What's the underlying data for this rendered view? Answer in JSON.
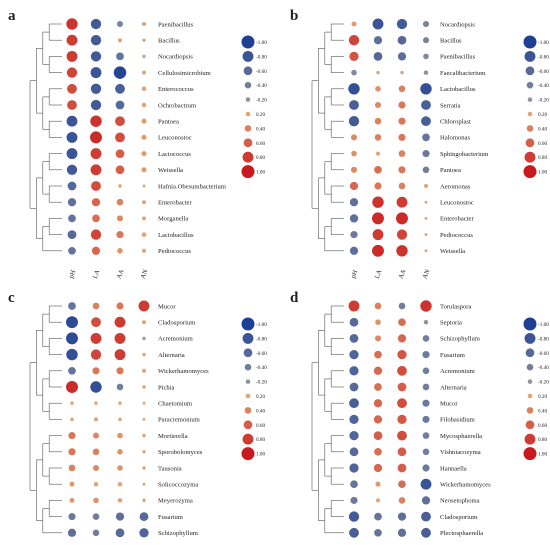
{
  "chart_data": [
    {
      "type": "bubble-heatmap",
      "panel_label": "a",
      "columns": [
        "pH",
        "LA",
        "AA",
        "AN"
      ],
      "rows": [
        "Paenibacillus",
        "Bacillus",
        "Nocardiopsis",
        "Cellulosimicrobium",
        "Enterococcus",
        "Ochrobactrum",
        "Pantoea",
        "Leuconostoc",
        "Lactococcus",
        "Weissella",
        "Hafnia.Obesumbacterium",
        "Enterobacter",
        "Morganella",
        "Lactobacillus",
        "Pediococcus"
      ],
      "values": [
        [
          0.85,
          -0.75,
          -0.35,
          0.15
        ],
        [
          0.8,
          -0.75,
          0.15,
          0.1
        ],
        [
          0.8,
          -0.75,
          -0.5,
          0.1
        ],
        [
          0.75,
          -0.8,
          -0.95,
          0.15
        ],
        [
          0.7,
          -0.75,
          -0.7,
          0.2
        ],
        [
          0.7,
          -0.75,
          -0.6,
          0.2
        ],
        [
          -0.8,
          0.85,
          0.7,
          0.25
        ],
        [
          -0.8,
          0.9,
          0.7,
          0.25
        ],
        [
          -0.8,
          0.8,
          0.6,
          0.25
        ],
        [
          -0.75,
          0.8,
          0.6,
          0.25
        ],
        [
          -0.6,
          0.7,
          0.1,
          0.05
        ],
        [
          -0.55,
          0.55,
          0.4,
          0.15
        ],
        [
          -0.5,
          0.5,
          0.35,
          0.15
        ],
        [
          -0.6,
          0.75,
          0.45,
          0.2
        ],
        [
          -0.5,
          0.55,
          0.3,
          0.15
        ]
      ],
      "legend_ticks": [
        "-1.00",
        "-0.80",
        "-0.60",
        "-0.40",
        "-0.20",
        "0.20",
        "0.40",
        "0.60",
        "0.80",
        "1.00"
      ]
    },
    {
      "type": "bubble-heatmap",
      "panel_label": "b",
      "columns": [
        "pH",
        "LA",
        "AA",
        "AN"
      ],
      "rows": [
        "Nocardiopsis",
        "Bacillus",
        "Paenibacillus",
        "Faecalibacterium",
        "Lactobacillus",
        "Serratia",
        "Chloroplast",
        "Halomonas",
        "Sphingobacterium",
        "Pantoea",
        "Aeromonas",
        "Leuconostoc",
        "Enterobacter",
        "Pediococcus",
        "Weissella"
      ],
      "values": [
        [
          0.25,
          -0.8,
          -0.75,
          -0.35
        ],
        [
          0.75,
          -0.55,
          -0.6,
          -0.35
        ],
        [
          0.65,
          -0.6,
          -0.55,
          -0.3
        ],
        [
          -0.3,
          0.1,
          0.1,
          -0.2
        ],
        [
          -0.85,
          0.3,
          0.4,
          -0.85
        ],
        [
          -0.7,
          0.35,
          0.45,
          -0.7
        ],
        [
          -0.75,
          0.4,
          0.45,
          -0.7
        ],
        [
          0.35,
          0.4,
          0.45,
          -0.5
        ],
        [
          0.3,
          0.15,
          0.4,
          -0.45
        ],
        [
          0.35,
          0.5,
          0.45,
          -0.4
        ],
        [
          0.55,
          0.45,
          0.4,
          0.15
        ],
        [
          -0.55,
          0.85,
          0.8,
          0.05
        ],
        [
          -0.55,
          0.9,
          0.9,
          0.05
        ],
        [
          -0.45,
          0.8,
          0.75,
          0.05
        ],
        [
          -0.55,
          0.9,
          0.85,
          0.05
        ]
      ],
      "legend_ticks": [
        "-1.00",
        "-0.80",
        "-0.60",
        "-0.40",
        "-0.20",
        "0.20",
        "0.40",
        "0.60",
        "0.80",
        "1.00"
      ]
    },
    {
      "type": "bubble-heatmap",
      "panel_label": "c",
      "columns": [
        "pH",
        "LA",
        "AA",
        "AN"
      ],
      "rows": [
        "Mucor",
        "Cladosporium",
        "Acremonium",
        "Alternaria",
        "Wickerhamomyces",
        "Pichia",
        "Chaetomium",
        "Paracremonium",
        "Mortierella",
        "Sporobolomyces",
        "Tausonia",
        "Solicoccozyma",
        "Meyerozyma",
        "Fusarium",
        "Schizophyllum"
      ],
      "values": [
        [
          -0.5,
          0.4,
          0.45,
          0.8
        ],
        [
          -0.9,
          0.7,
          0.8,
          0.15
        ],
        [
          -0.9,
          0.8,
          0.8,
          -0.1
        ],
        [
          -0.85,
          0.75,
          0.8,
          0.1
        ],
        [
          -0.5,
          0.45,
          0.45,
          0.15
        ],
        [
          0.9,
          -0.85,
          -0.4,
          0.1
        ],
        [
          0.1,
          0.1,
          0.1,
          0.05
        ],
        [
          0.1,
          0.15,
          0.1,
          0.05
        ],
        [
          0.45,
          0.35,
          0.3,
          0.1
        ],
        [
          0.45,
          0.4,
          0.3,
          0.1
        ],
        [
          0.4,
          0.35,
          0.3,
          0.1
        ],
        [
          0.25,
          0.2,
          0.2,
          0.05
        ],
        [
          0.25,
          0.3,
          0.2,
          0.1
        ],
        [
          -0.45,
          -0.4,
          -0.55,
          -0.6
        ],
        [
          -0.55,
          -0.4,
          -0.6,
          -0.65
        ]
      ],
      "legend_ticks": [
        "-1.00",
        "-0.80",
        "-0.60",
        "-0.40",
        "-0.20",
        "0.20",
        "0.40",
        "0.60",
        "0.80",
        "1.00"
      ]
    },
    {
      "type": "bubble-heatmap",
      "panel_label": "d",
      "columns": [
        "pH",
        "LA",
        "AA",
        "AN"
      ],
      "rows": [
        "Torulaspora",
        "Septoria",
        "Schizophyllum",
        "Fusarium",
        "Acremonium",
        "Alternaria",
        "Mucor",
        "Filobasidium",
        "Mycosphaerella",
        "Vishniacozyma",
        "Hannaella",
        "Wickerhamomyces",
        "Neosetophoma",
        "Cladosporium",
        "Plectosphaerella"
      ],
      "values": [
        [
          0.8,
          0.4,
          -0.4,
          0.85
        ],
        [
          -0.6,
          0.3,
          0.5,
          -0.2
        ],
        [
          -0.6,
          0.35,
          0.55,
          -0.4
        ],
        [
          -0.65,
          0.5,
          0.65,
          -0.45
        ],
        [
          -0.65,
          0.55,
          0.7,
          -0.4
        ],
        [
          -0.6,
          0.5,
          0.6,
          -0.4
        ],
        [
          -0.7,
          0.55,
          0.7,
          -0.45
        ],
        [
          -0.65,
          0.55,
          0.65,
          -0.45
        ],
        [
          -0.65,
          0.6,
          0.7,
          -0.4
        ],
        [
          -0.6,
          0.5,
          0.6,
          -0.4
        ],
        [
          -0.65,
          0.55,
          0.6,
          -0.45
        ],
        [
          -0.5,
          0.25,
          0.5,
          -0.8
        ],
        [
          -0.45,
          0.15,
          0.4,
          -0.55
        ],
        [
          -0.75,
          -0.5,
          -0.55,
          -0.7
        ],
        [
          -0.7,
          -0.5,
          -0.55,
          -0.7
        ]
      ],
      "legend_ticks": [
        "-1.00",
        "-0.80",
        "-0.60",
        "-0.40",
        "-0.20",
        "0.20",
        "0.40",
        "0.60",
        "0.80",
        "1.00"
      ]
    }
  ],
  "colors": {
    "negative": "#1f3f95",
    "neutral_low": "#a9a9a0",
    "positive_mid": "#e0a373",
    "positive": "#c8191e"
  }
}
